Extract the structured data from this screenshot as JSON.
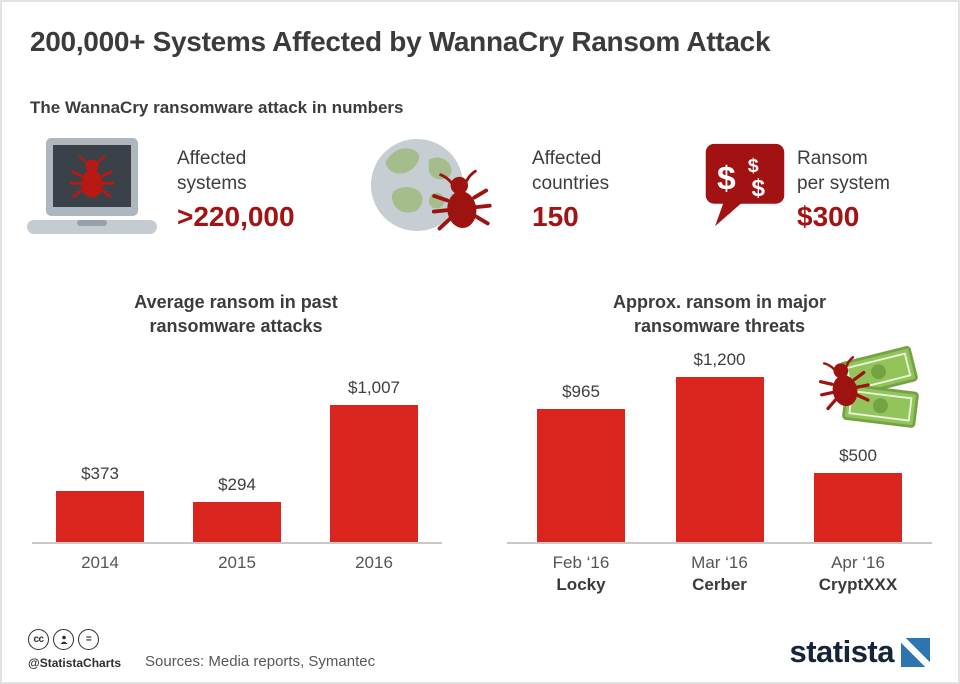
{
  "colors": {
    "bar_red": "#d9251d",
    "dark_red": "#a31313",
    "icon_dark_red": "#9c1310",
    "money_green": "#93c35b",
    "statista_navy": "#16243a",
    "statista_blue": "#2e75ad"
  },
  "header": {
    "title": "200,000+ Systems Affected by WannaCry Ransom Attack",
    "subtitle": "The WannaCry ransomware attack in numbers"
  },
  "stats": [
    {
      "icon": "laptop-bug-icon",
      "label": "Affected systems",
      "value": ">220,000"
    },
    {
      "icon": "globe-bug-icon",
      "label": "Affected countries",
      "value": "150"
    },
    {
      "icon": "ransom-speech-bubble-icon",
      "label": "Ransom per system",
      "value": "$300"
    }
  ],
  "chart_data": [
    {
      "type": "bar",
      "title": "Average ransom in past ransomware attacks",
      "categories": [
        "2014",
        "2015",
        "2016"
      ],
      "values": [
        373,
        294,
        1007
      ],
      "value_labels": [
        "$373",
        "$294",
        "$1,007"
      ],
      "ylim": [
        0,
        1007
      ],
      "grid": false,
      "legend": false
    },
    {
      "type": "bar",
      "title": "Approx. ransom in major ransomware threats",
      "categories": [
        "Feb ‘16",
        "Mar ‘16",
        "Apr ‘16"
      ],
      "sublabels": [
        "Locky",
        "Cerber",
        "CryptXXX"
      ],
      "values": [
        965,
        1200,
        500
      ],
      "value_labels": [
        "$965",
        "$1,200",
        "$500"
      ],
      "ylim": [
        0,
        1200
      ],
      "grid": false,
      "legend": false
    }
  ],
  "footer": {
    "cc_text": "cc",
    "nd_text": "=",
    "handle": "@StatistaCharts",
    "sources": "Sources: Media reports, Symantec",
    "brand": "statista"
  }
}
